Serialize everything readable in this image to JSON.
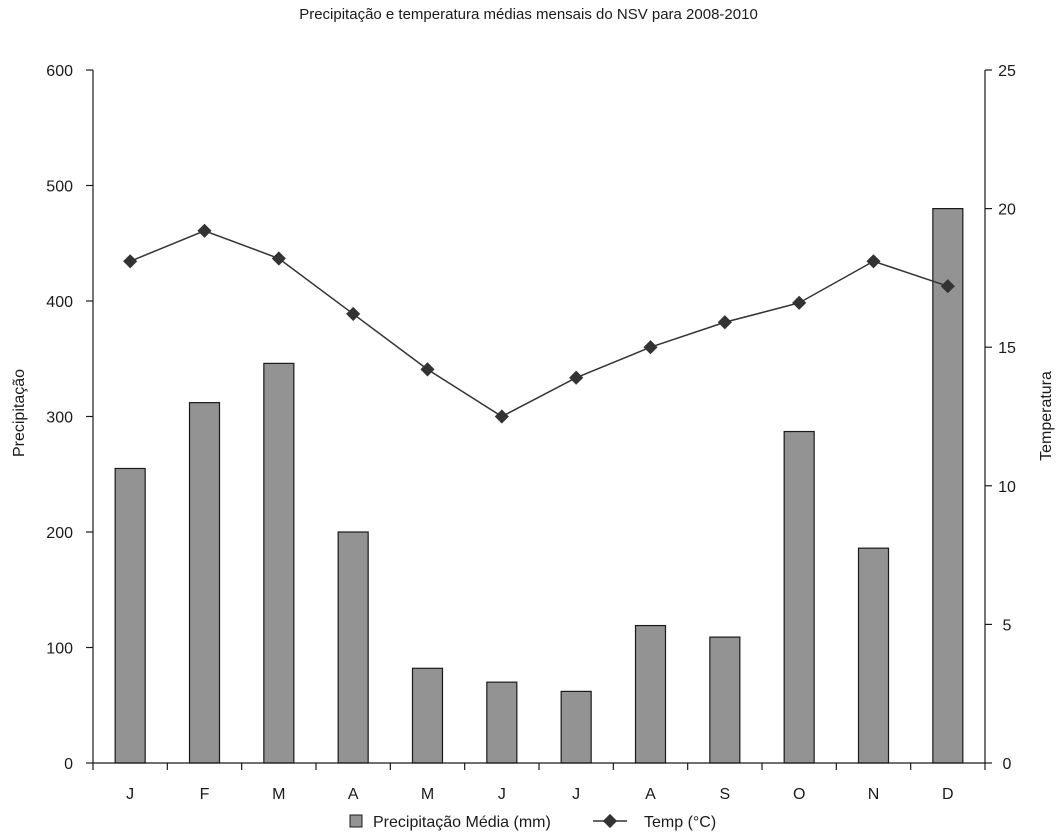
{
  "chart_data": {
    "type": "bar",
    "title": "Precipitação e temperatura médias mensais do NSV para 2008-2010",
    "categories": [
      "J",
      "F",
      "M",
      "A",
      "M",
      "J",
      "J",
      "A",
      "S",
      "O",
      "N",
      "D"
    ],
    "ylabel": "Precipitação",
    "y2label": "Temperatura",
    "ylim": [
      0,
      600
    ],
    "y2lim": [
      0,
      25
    ],
    "yticks": [
      0,
      100,
      200,
      300,
      400,
      500,
      600
    ],
    "y2ticks": [
      0,
      5,
      10,
      15,
      20,
      25
    ],
    "grid": false,
    "legend_position": "bottom-center",
    "series": [
      {
        "name": "Precipitação Média (mm)",
        "type": "bar",
        "axis": "left",
        "color": "#939393",
        "values": [
          255,
          312,
          346,
          200,
          82,
          70,
          62,
          119,
          109,
          287,
          186,
          480
        ]
      },
      {
        "name": "Temp (°C)",
        "type": "line",
        "axis": "right",
        "color": "#333333",
        "marker": "diamond",
        "values": [
          18.1,
          19.2,
          18.2,
          16.2,
          14.2,
          12.5,
          13.9,
          15.0,
          15.9,
          16.6,
          18.1,
          17.2
        ]
      }
    ]
  }
}
